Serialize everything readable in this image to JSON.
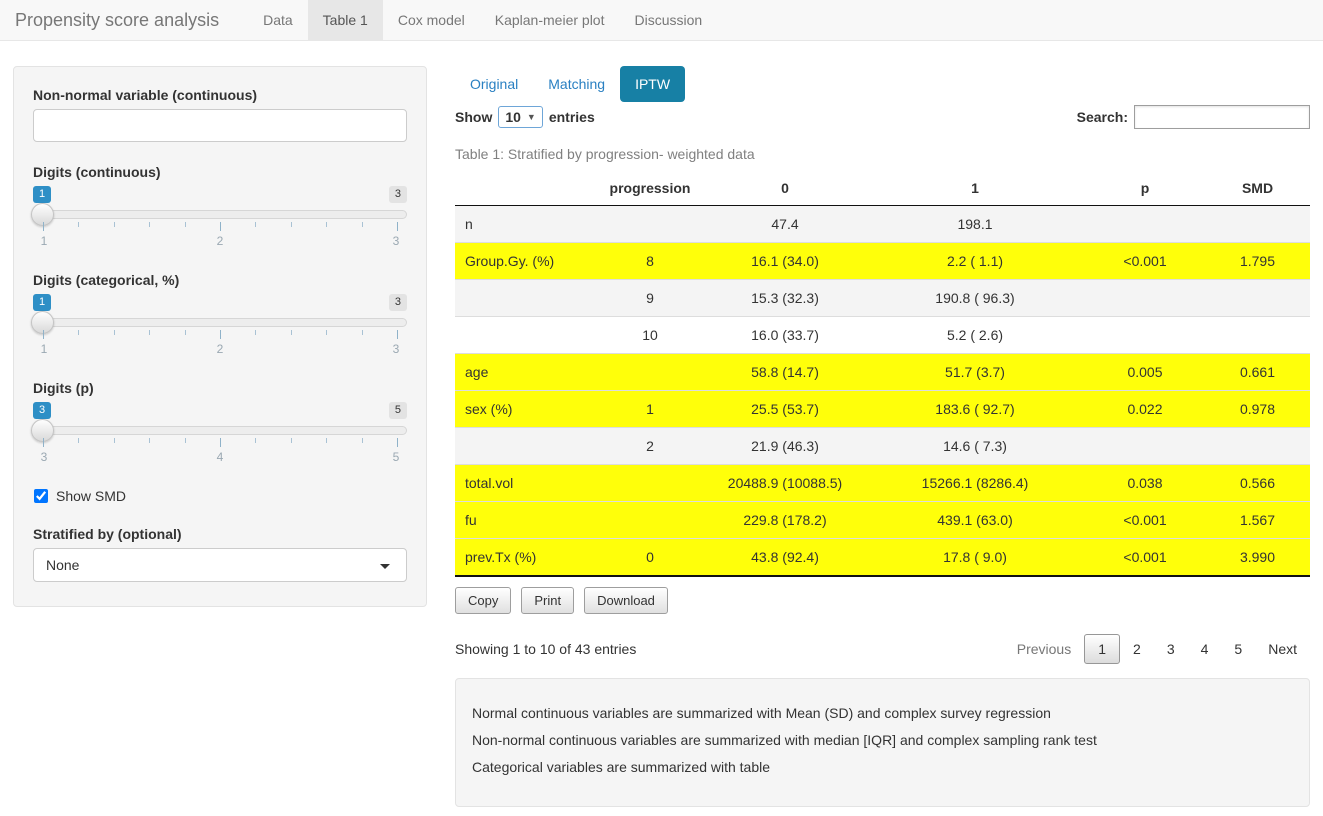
{
  "colors": {
    "active_pill": "#1780a5",
    "link": "#2a80c2",
    "highlight_row": "#ffff0a",
    "slider_badge": "#2e8fc6",
    "navbar_bg": "#f8f8f8"
  },
  "navbar": {
    "title": "Propensity score analysis",
    "tabs": [
      {
        "label": "Data",
        "active": false
      },
      {
        "label": "Table 1",
        "active": true
      },
      {
        "label": "Cox model",
        "active": false
      },
      {
        "label": "Kaplan-meier plot",
        "active": false
      },
      {
        "label": "Discussion",
        "active": false
      }
    ]
  },
  "sidebar": {
    "nonnormal": {
      "label": "Non-normal variable (continuous)",
      "value": ""
    },
    "sliders": [
      {
        "label": "Digits (continuous)",
        "value": "1",
        "max": "3",
        "ticks": [
          "1",
          "2",
          "3"
        ]
      },
      {
        "label": "Digits (categorical, %)",
        "value": "1",
        "max": "3",
        "ticks": [
          "1",
          "2",
          "3"
        ]
      },
      {
        "label": "Digits (p)",
        "value": "3",
        "max": "5",
        "ticks": [
          "3",
          "4",
          "5"
        ]
      }
    ],
    "show_smd": {
      "label": "Show SMD",
      "checked": true
    },
    "stratified": {
      "label": "Stratified by (optional)",
      "value": "None"
    }
  },
  "main": {
    "tabs": [
      {
        "label": "Original",
        "active": false
      },
      {
        "label": "Matching",
        "active": false
      },
      {
        "label": "IPTW",
        "active": true
      }
    ],
    "length_control": {
      "show": "Show",
      "value": "10",
      "entries": "entries"
    },
    "search": {
      "label": "Search:",
      "value": ""
    },
    "caption": "Table 1: Stratified by progression- weighted data",
    "table": {
      "headers": [
        "",
        "progression",
        "0",
        "1",
        "p",
        "SMD"
      ],
      "rows": [
        {
          "cells": [
            "n",
            "",
            "47.4",
            "198.1",
            "",
            ""
          ]
        },
        {
          "cells": [
            "Group.Gy. (%)",
            "8",
            "16.1 (34.0)",
            "2.2 ( 1.1)",
            "<0.001",
            "1.795"
          ]
        },
        {
          "cells": [
            "",
            "9",
            "15.3 (32.3)",
            "190.8 ( 96.3)",
            "",
            ""
          ]
        },
        {
          "cells": [
            "",
            "10",
            "16.0 (33.7)",
            "5.2 ( 2.6)",
            "",
            ""
          ]
        },
        {
          "cells": [
            "age",
            "",
            "58.8 (14.7)",
            "51.7 (3.7)",
            "0.005",
            "0.661"
          ]
        },
        {
          "cells": [
            "sex (%)",
            "1",
            "25.5 (53.7)",
            "183.6 ( 92.7)",
            "0.022",
            "0.978"
          ]
        },
        {
          "cells": [
            "",
            "2",
            "21.9 (46.3)",
            "14.6 ( 7.3)",
            "",
            ""
          ]
        },
        {
          "cells": [
            "total.vol",
            "",
            "20488.9 (10088.5)",
            "15266.1 (8286.4)",
            "0.038",
            "0.566"
          ]
        },
        {
          "cells": [
            "fu",
            "",
            "229.8 (178.2)",
            "439.1 (63.0)",
            "<0.001",
            "1.567"
          ]
        },
        {
          "cells": [
            "prev.Tx (%)",
            "0",
            "43.8 (92.4)",
            "17.8 ( 9.0)",
            "<0.001",
            "3.990"
          ]
        }
      ]
    },
    "buttons": {
      "copy": "Copy",
      "print": "Print",
      "download": "Download"
    },
    "info": "Showing 1 to 10 of 43 entries",
    "pagination": {
      "previous": "Previous",
      "pages": [
        "1",
        "2",
        "3",
        "4",
        "5"
      ],
      "current": "1",
      "next": "Next"
    },
    "notes": [
      "Normal continuous variables are summarized with Mean (SD) and complex survey regression",
      "Non-normal continuous variables are summarized with median [IQR] and complex sampling rank test",
      "Categorical variables are summarized with table"
    ]
  }
}
